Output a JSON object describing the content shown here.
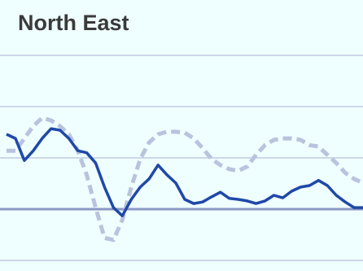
{
  "chart_data": {
    "type": "line",
    "title": "North East",
    "x": [
      0,
      1,
      2,
      3,
      4,
      5,
      6,
      7,
      8,
      9,
      10,
      11,
      12,
      13,
      14,
      15,
      16,
      17,
      18,
      19,
      20,
      21,
      22,
      23,
      24,
      25,
      26,
      27,
      28,
      29,
      30,
      31,
      32,
      33,
      34,
      35,
      36,
      37,
      38,
      39,
      40
    ],
    "xlim": [
      0,
      40
    ],
    "ylim": [
      -1,
      3
    ],
    "yticks": [
      -1,
      0,
      1,
      2,
      3
    ],
    "grid": true,
    "series": [
      {
        "color": "#b9c3de",
        "dashed": true,
        "values": [
          1.14,
          1.14,
          1.38,
          1.62,
          1.78,
          1.73,
          1.62,
          1.46,
          1.14,
          0.67,
          0.03,
          -0.56,
          -0.6,
          -0.21,
          0.43,
          0.98,
          1.3,
          1.46,
          1.51,
          1.51,
          1.49,
          1.38,
          1.19,
          0.98,
          0.86,
          0.78,
          0.75,
          0.83,
          1.06,
          1.25,
          1.35,
          1.38,
          1.38,
          1.35,
          1.25,
          1.22,
          1.06,
          0.9,
          0.71,
          0.59,
          0.51
        ]
      },
      {
        "color": "#1f48a8",
        "dashed": false,
        "values": [
          1.46,
          1.38,
          0.95,
          1.14,
          1.38,
          1.57,
          1.54,
          1.38,
          1.14,
          1.1,
          0.9,
          0.43,
          0.03,
          -0.13,
          0.19,
          0.43,
          0.59,
          0.86,
          0.67,
          0.51,
          0.19,
          0.11,
          0.14,
          0.24,
          0.33,
          0.21,
          0.19,
          0.16,
          0.11,
          0.16,
          0.27,
          0.22,
          0.35,
          0.43,
          0.46,
          0.56,
          0.46,
          0.27,
          0.14,
          0.03,
          0.03
        ]
      }
    ]
  }
}
